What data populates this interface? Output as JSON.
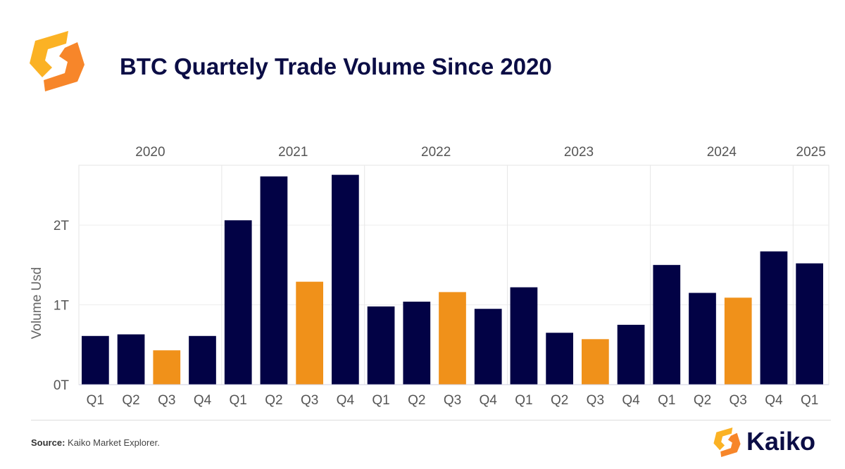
{
  "title": "BTC Quartely Trade Volume Since 2020",
  "source_label": "Source:",
  "source_text": "Kaiko Market Explorer.",
  "brand": "Kaiko",
  "colors": {
    "navy": "#020245",
    "orange": "#f0911a"
  },
  "chart_data": {
    "type": "bar",
    "title": "BTC Quartely Trade Volume Since 2020",
    "ylabel": "Volume Usd",
    "xlabel": "",
    "ylim": [
      0,
      2.75
    ],
    "yticks": [
      0,
      1,
      2
    ],
    "ytick_labels": [
      "0T",
      "1T",
      "2T"
    ],
    "grid": true,
    "years": [
      {
        "label": "2020",
        "n": 4
      },
      {
        "label": "2021",
        "n": 4
      },
      {
        "label": "2022",
        "n": 4
      },
      {
        "label": "2023",
        "n": 4
      },
      {
        "label": "2024",
        "n": 4
      },
      {
        "label": "2025",
        "n": 1
      }
    ],
    "categories": [
      "Q1",
      "Q2",
      "Q3",
      "Q4",
      "Q1",
      "Q2",
      "Q3",
      "Q4",
      "Q1",
      "Q2",
      "Q3",
      "Q4",
      "Q1",
      "Q2",
      "Q3",
      "Q4",
      "Q1",
      "Q2",
      "Q3",
      "Q4",
      "Q1"
    ],
    "values": [
      0.61,
      0.63,
      0.43,
      0.61,
      2.06,
      2.61,
      1.29,
      2.63,
      0.98,
      1.04,
      1.16,
      0.95,
      1.22,
      0.65,
      0.57,
      0.75,
      1.5,
      1.15,
      1.09,
      1.67,
      1.52
    ],
    "unit": "T USD"
  }
}
